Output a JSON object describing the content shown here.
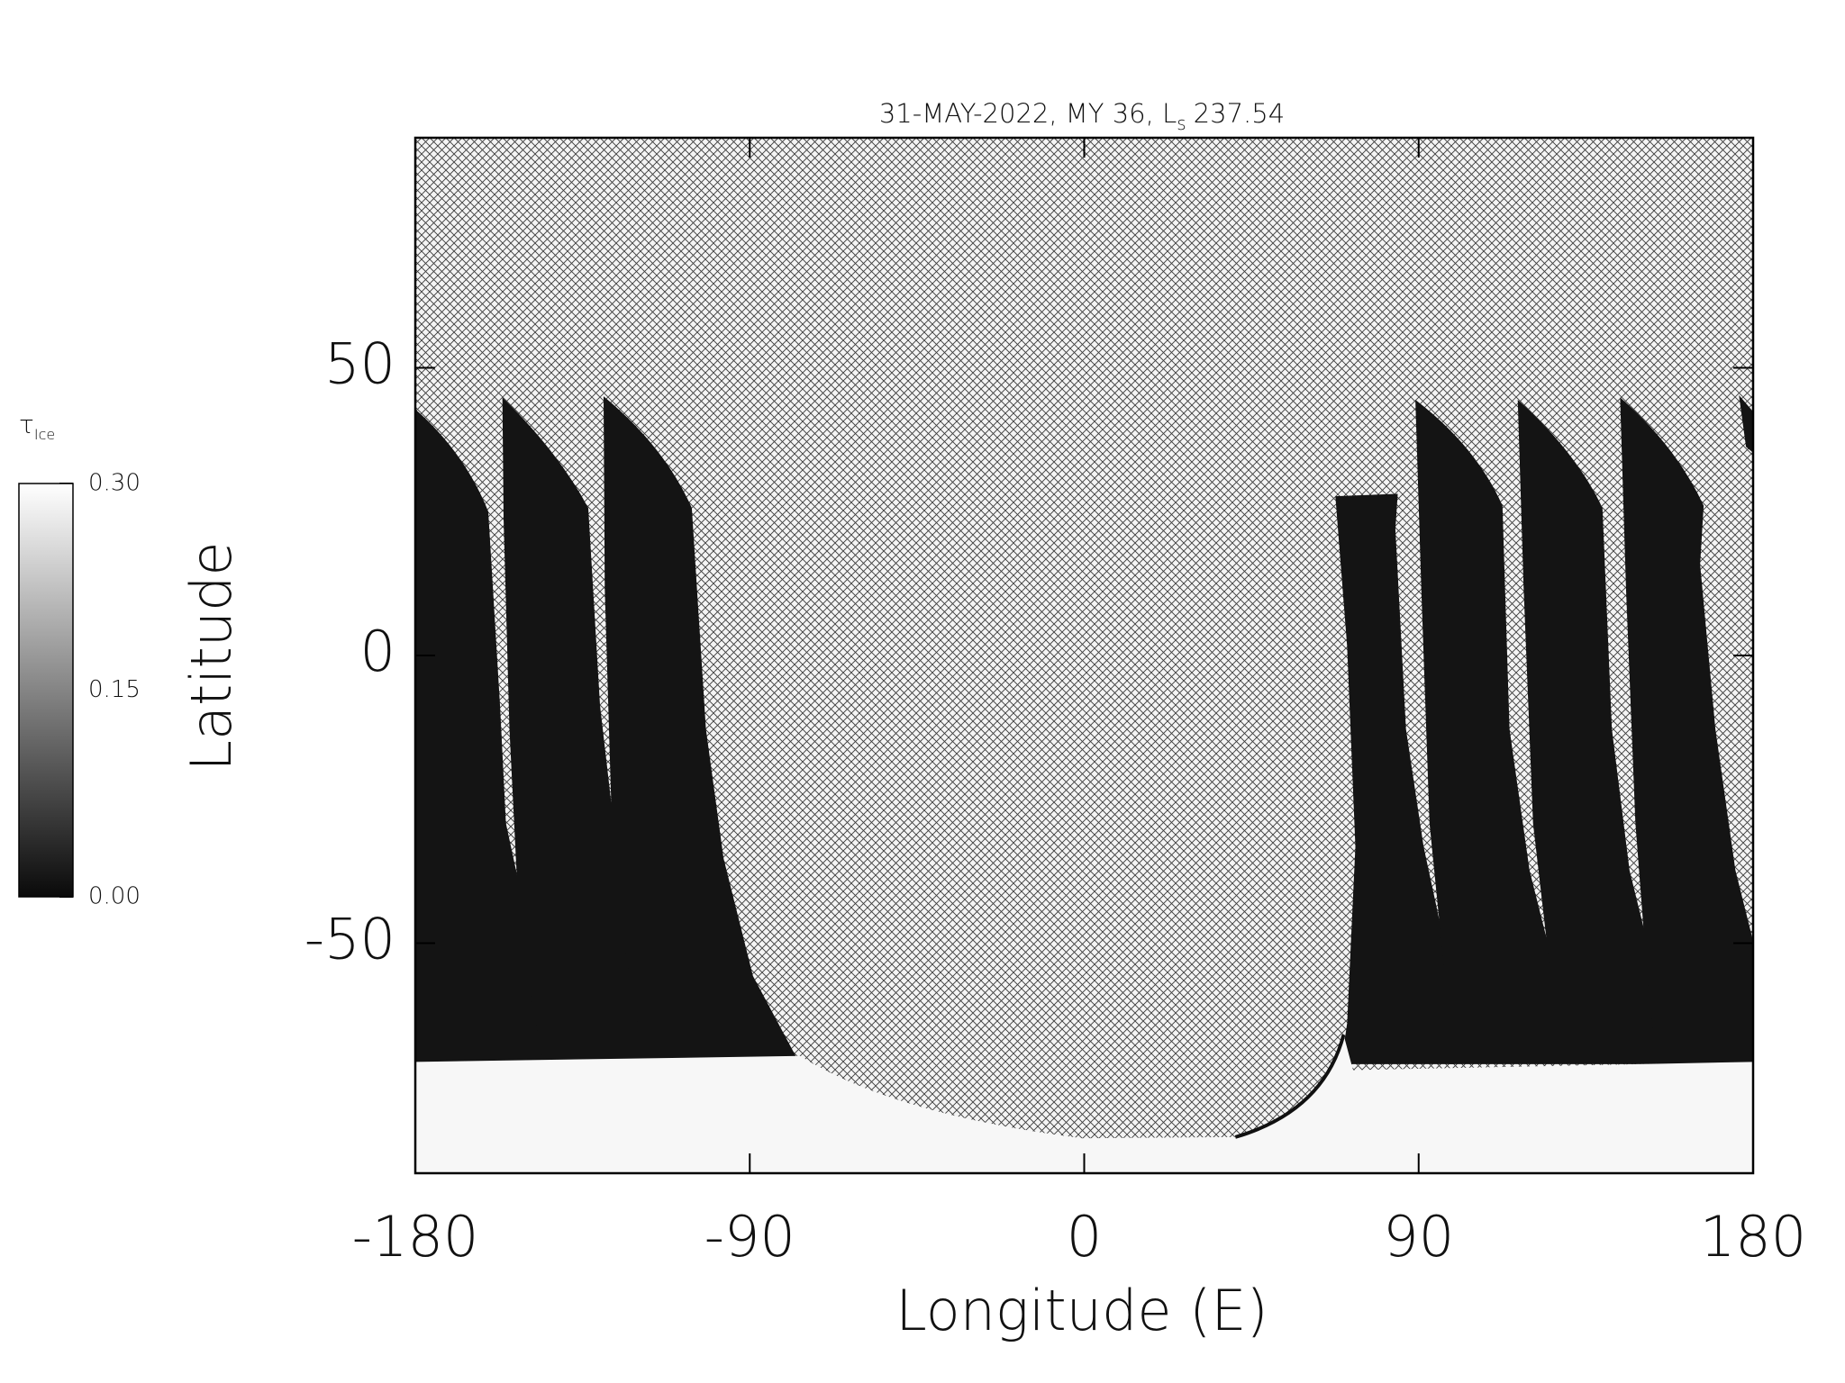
{
  "chart_data": {
    "type": "map",
    "title": {
      "text": "31-MAY-2022, MY 36,",
      "symbol": "L",
      "subscript": "s",
      "value": "237.54"
    },
    "xlabel": "Longitude (E)",
    "ylabel": "Latitude",
    "xlim": [
      -180,
      180
    ],
    "ylim": [
      -90,
      90
    ],
    "xticks": [
      -180,
      -90,
      0,
      90,
      180
    ],
    "yticks": [
      -50,
      0,
      50
    ],
    "colorbar": {
      "label": "τ",
      "label_subscript": "Ice",
      "lim": [
        0,
        0.3
      ],
      "ticks": [
        {
          "value": 0,
          "label": "0.00"
        },
        {
          "value": 0.15,
          "label": "0.15"
        },
        {
          "value": 0.3,
          "label": "0.30"
        }
      ],
      "colors": [
        "#0a0a0a",
        "#ffffff"
      ]
    }
  }
}
